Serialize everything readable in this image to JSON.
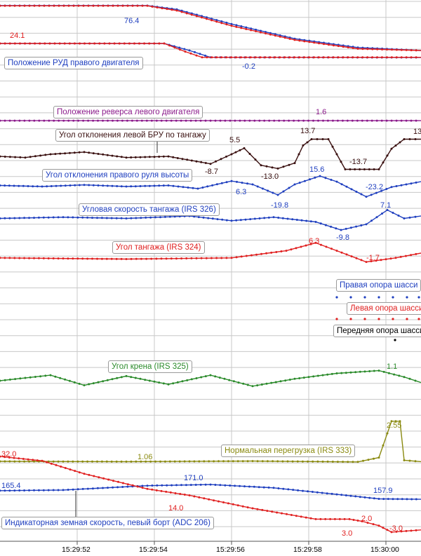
{
  "time_axis": {
    "ticks": [
      "15:29:52",
      "15:29:54",
      "15:29:56",
      "15:29:58",
      "15:30:00"
    ]
  },
  "channels": {
    "rud_left": {
      "color": "#1f3fbf",
      "values": [
        {
          "text": "76.4"
        }
      ]
    },
    "rud_left_cmd": {
      "color": "#e02020",
      "values": []
    },
    "rud_right": {
      "color": "#1f3fbf",
      "label": "Положение РУД правого двигателя",
      "values": [
        {
          "text": "-0.2"
        }
      ]
    },
    "rud_right_cmd": {
      "color": "#e02020",
      "values": [
        {
          "text": "24.1"
        }
      ]
    },
    "reverse_left": {
      "color": "#8b1a8b",
      "label": "Положение реверса левого двигателя",
      "values": [
        {
          "text": "1.6"
        }
      ]
    },
    "bru_left_pitch": {
      "color": "#3a1010",
      "label": "Угол отклонения левой БРУ по тангажу",
      "values": [
        {
          "text": "5.5"
        },
        {
          "text": "-8.7"
        },
        {
          "text": "13.7"
        },
        {
          "text": "-13.0"
        },
        {
          "text": "-13.7"
        },
        {
          "text": "13"
        }
      ]
    },
    "elevator_right": {
      "color": "#1f3fbf",
      "label": "Угол отклонения правого руля высоты",
      "values": [
        {
          "text": "6.3"
        },
        {
          "text": "15.6"
        },
        {
          "text": "-19.8"
        },
        {
          "text": "-23.2"
        }
      ]
    },
    "pitch_rate": {
      "color": "#1f3fbf",
      "label": "Угловая скорость тангажа (IRS 326)",
      "values": [
        {
          "text": "7.1"
        },
        {
          "text": "-9.8"
        }
      ]
    },
    "pitch": {
      "color": "#e02020",
      "label": "Угол тангажа (IRS 324)",
      "values": [
        {
          "text": "6.3"
        },
        {
          "text": "-1.7"
        }
      ]
    },
    "gear_right": {
      "color": "#1f3fbf",
      "label": "Правая опора шасси"
    },
    "gear_left": {
      "color": "#e02020",
      "label": "Левая опора шасси"
    },
    "gear_nose": {
      "color": "#000000",
      "label": "Передняя опора шасси"
    },
    "roll": {
      "color": "#2a8a2a",
      "label": "Угол крена (IRS 325)",
      "values": [
        {
          "text": "1.1"
        }
      ]
    },
    "nz": {
      "color": "#8a8a10",
      "label": "Нормальная перегрузка (IRS 333)",
      "values": [
        {
          "text": "1.06"
        },
        {
          "text": "2.55"
        }
      ]
    },
    "nz_red": {
      "color": "#e02020",
      "values": [
        {
          "text": "32.0"
        }
      ]
    },
    "ias": {
      "color": "#1f3fbf",
      "label": "Индикаторная земная скорость, певый борт (ADC 206)",
      "values": [
        {
          "text": "165.4"
        },
        {
          "text": "171.0"
        },
        {
          "text": "157.9"
        }
      ]
    },
    "ias_red": {
      "color": "#e02020",
      "values": [
        {
          "text": "14.0"
        },
        {
          "text": "2.0"
        },
        {
          "text": "3.0"
        },
        {
          "text": "-3.0"
        }
      ]
    }
  },
  "colors": {
    "grid": "#c8c8c8",
    "background": "#ffffff"
  },
  "chart_data": {
    "type": "line",
    "x_unit": "time",
    "x_range": [
      "15:29:50.8",
      "15:30:00.9"
    ],
    "series": [
      {
        "id": "rud_left",
        "points": [
          [
            0.0,
            76.4
          ],
          [
            0.35,
            76.4
          ],
          [
            0.42,
            70
          ],
          [
            0.55,
            45
          ],
          [
            0.7,
            20
          ],
          [
            0.85,
            5
          ],
          [
            1.0,
            0
          ]
        ],
        "min": 0,
        "max": 76.4
      },
      {
        "id": "rud_left_cmd",
        "points": [
          [
            0.0,
            76.0
          ],
          [
            0.35,
            76.0
          ],
          [
            0.42,
            68
          ],
          [
            0.55,
            42
          ],
          [
            0.7,
            18
          ],
          [
            0.85,
            3
          ],
          [
            1.0,
            0
          ]
        ],
        "min": 0,
        "max": 76.4
      },
      {
        "id": "rud_right",
        "points": [
          [
            0.0,
            24.1
          ],
          [
            0.39,
            24.1
          ],
          [
            0.45,
            12
          ],
          [
            0.5,
            0
          ],
          [
            1.0,
            -0.2
          ]
        ],
        "min": -0.2,
        "max": 24.1
      },
      {
        "id": "rud_right_cmd",
        "points": [
          [
            0.0,
            24.1
          ],
          [
            0.39,
            24.1
          ],
          [
            0.44,
            10
          ],
          [
            0.48,
            0
          ],
          [
            1.0,
            0
          ]
        ],
        "min": -0.2,
        "max": 24.1
      },
      {
        "id": "reverse_left",
        "points": [
          [
            0.0,
            1.6
          ],
          [
            1.0,
            1.6
          ]
        ],
        "min": 0,
        "max": 3
      },
      {
        "id": "bru_left_pitch",
        "points": [
          [
            0.0,
            -2
          ],
          [
            0.06,
            -3
          ],
          [
            0.12,
            0
          ],
          [
            0.2,
            2
          ],
          [
            0.3,
            -3
          ],
          [
            0.4,
            -2
          ],
          [
            0.5,
            -8.7
          ],
          [
            0.55,
            0
          ],
          [
            0.58,
            5.5
          ],
          [
            0.62,
            -10
          ],
          [
            0.66,
            -13.0
          ],
          [
            0.7,
            -8
          ],
          [
            0.72,
            8
          ],
          [
            0.74,
            13.7
          ],
          [
            0.78,
            13.7
          ],
          [
            0.8,
            0
          ],
          [
            0.82,
            -13.7
          ],
          [
            0.9,
            -13.7
          ],
          [
            0.93,
            5
          ],
          [
            0.96,
            13.7
          ],
          [
            1.0,
            13.7
          ]
        ],
        "min": -14,
        "max": 14
      },
      {
        "id": "elevator_right",
        "points": [
          [
            0.0,
            -2
          ],
          [
            0.1,
            -4
          ],
          [
            0.2,
            -1
          ],
          [
            0.3,
            -4
          ],
          [
            0.4,
            -2
          ],
          [
            0.47,
            -8
          ],
          [
            0.55,
            6.3
          ],
          [
            0.6,
            0
          ],
          [
            0.66,
            -19.8
          ],
          [
            0.7,
            0
          ],
          [
            0.76,
            15.6
          ],
          [
            0.8,
            5
          ],
          [
            0.87,
            -23.2
          ],
          [
            0.93,
            -5
          ],
          [
            1.0,
            5
          ]
        ],
        "min": -25,
        "max": 17
      },
      {
        "id": "pitch_rate",
        "points": [
          [
            0.0,
            0
          ],
          [
            0.15,
            1
          ],
          [
            0.3,
            0
          ],
          [
            0.45,
            2
          ],
          [
            0.55,
            -2
          ],
          [
            0.65,
            1
          ],
          [
            0.75,
            -3
          ],
          [
            0.81,
            -9.8
          ],
          [
            0.87,
            -5
          ],
          [
            0.92,
            7.1
          ],
          [
            0.96,
            0
          ],
          [
            1.0,
            2
          ]
        ],
        "min": -11,
        "max": 8
      },
      {
        "id": "pitch",
        "points": [
          [
            0.0,
            0
          ],
          [
            0.3,
            -0.5
          ],
          [
            0.55,
            0
          ],
          [
            0.68,
            3
          ],
          [
            0.75,
            6.3
          ],
          [
            0.8,
            3
          ],
          [
            0.87,
            -1.7
          ],
          [
            0.94,
            0
          ],
          [
            1.0,
            2
          ]
        ],
        "min": -3,
        "max": 7
      },
      {
        "id": "roll",
        "points": [
          [
            0.0,
            0
          ],
          [
            0.12,
            0.6
          ],
          [
            0.2,
            -0.5
          ],
          [
            0.3,
            0.5
          ],
          [
            0.4,
            -0.4
          ],
          [
            0.5,
            0.6
          ],
          [
            0.6,
            -0.6
          ],
          [
            0.7,
            0.2
          ],
          [
            0.8,
            0.8
          ],
          [
            0.9,
            1.1
          ],
          [
            0.96,
            0.4
          ],
          [
            1.0,
            -0.2
          ]
        ],
        "min": -1,
        "max": 1.3
      },
      {
        "id": "nz",
        "points": [
          [
            0.0,
            1.06
          ],
          [
            0.3,
            1.05
          ],
          [
            0.6,
            1.07
          ],
          [
            0.85,
            1.04
          ],
          [
            0.9,
            1.2
          ],
          [
            0.93,
            2.55
          ],
          [
            0.95,
            2.55
          ],
          [
            0.96,
            1.1
          ],
          [
            1.0,
            1.05
          ]
        ],
        "min": 0.8,
        "max": 2.7
      },
      {
        "id": "ias",
        "points": [
          [
            0.0,
            165.4
          ],
          [
            0.15,
            166
          ],
          [
            0.35,
            170
          ],
          [
            0.5,
            171.0
          ],
          [
            0.65,
            168
          ],
          [
            0.8,
            162
          ],
          [
            0.9,
            157.9
          ],
          [
            1.0,
            157.5
          ]
        ],
        "min": 155,
        "max": 173
      },
      {
        "id": "ias_red",
        "points": [
          [
            0.0,
            32.0
          ],
          [
            0.1,
            30
          ],
          [
            0.2,
            24
          ],
          [
            0.35,
            17
          ],
          [
            0.45,
            14.0
          ],
          [
            0.6,
            8
          ],
          [
            0.75,
            3
          ],
          [
            0.83,
            3.0
          ],
          [
            0.86,
            2.0
          ],
          [
            0.9,
            0
          ],
          [
            0.93,
            -3.0
          ],
          [
            1.0,
            -2
          ]
        ],
        "min": -4,
        "max": 33
      }
    ]
  }
}
